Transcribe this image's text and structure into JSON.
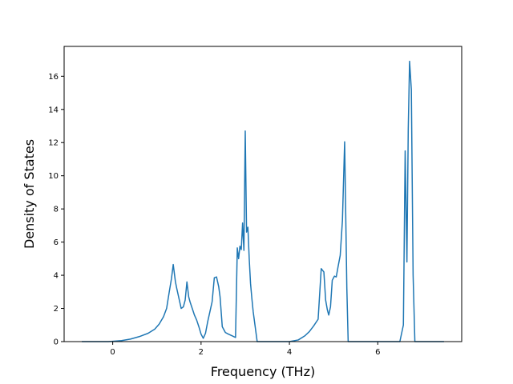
{
  "chart_data": {
    "type": "line",
    "title": "",
    "xlabel": "Frequency (THz)",
    "ylabel": "Density of States",
    "xlim": [
      -1.1,
      7.9
    ],
    "ylim": [
      0,
      17.8
    ],
    "xticks": [
      0,
      2,
      4,
      6
    ],
    "yticks": [
      0,
      2,
      4,
      6,
      8,
      10,
      12,
      14,
      16
    ],
    "grid": false,
    "legend": "none",
    "colors": {
      "line": "#1f77b4",
      "axes": "#000000",
      "background": "#ffffff"
    },
    "series": [
      {
        "x": [
          -0.7,
          -0.4,
          -0.1,
          0.0,
          0.2,
          0.4,
          0.6,
          0.8,
          0.95,
          1.05,
          1.15,
          1.22,
          1.28,
          1.33,
          1.37,
          1.42,
          1.45,
          1.5,
          1.55,
          1.6,
          1.64,
          1.68,
          1.72,
          1.75,
          1.8,
          1.85,
          1.9,
          1.95,
          2.0,
          2.05,
          2.1,
          2.15,
          2.2,
          2.25,
          2.3,
          2.35,
          2.4,
          2.43,
          2.48,
          2.55,
          2.62,
          2.7,
          2.78,
          2.82,
          2.85,
          2.88,
          2.91,
          2.94,
          2.97,
          3.0,
          3.03,
          3.06,
          3.09,
          3.12,
          3.15,
          3.18,
          3.22,
          3.27,
          3.32,
          3.36,
          3.45,
          3.6,
          3.8,
          4.0,
          4.2,
          4.35,
          4.45,
          4.55,
          4.65,
          4.72,
          4.78,
          4.82,
          4.86,
          4.89,
          4.93,
          4.97,
          5.02,
          5.06,
          5.1,
          5.15,
          5.2,
          5.25,
          5.3,
          5.33,
          5.37,
          5.4,
          5.45,
          5.5,
          5.8,
          6.2,
          6.5,
          6.58,
          6.62,
          6.66,
          6.69,
          6.72,
          6.76,
          6.8,
          6.84,
          6.9,
          7.2,
          7.5
        ],
        "y": [
          0,
          0,
          0,
          0.02,
          0.06,
          0.15,
          0.3,
          0.5,
          0.75,
          1.05,
          1.5,
          2.0,
          3.0,
          3.8,
          4.65,
          3.6,
          3.2,
          2.6,
          2.0,
          2.1,
          2.5,
          3.6,
          2.7,
          2.4,
          2.0,
          1.6,
          1.3,
          0.9,
          0.45,
          0.2,
          0.5,
          1.2,
          1.8,
          2.4,
          3.85,
          3.9,
          3.3,
          2.7,
          0.9,
          0.55,
          0.45,
          0.35,
          0.25,
          5.65,
          5.0,
          5.75,
          5.55,
          7.15,
          5.5,
          12.7,
          6.6,
          6.9,
          5.0,
          3.5,
          2.6,
          1.8,
          1.0,
          0,
          0,
          0,
          0,
          0,
          0,
          0,
          0.1,
          0.35,
          0.6,
          0.95,
          1.35,
          4.4,
          4.2,
          2.5,
          1.9,
          1.6,
          2.1,
          3.7,
          3.95,
          3.9,
          4.5,
          5.2,
          7.3,
          12.05,
          3.2,
          0,
          0,
          0,
          0,
          0,
          0,
          0,
          0,
          1.0,
          11.5,
          4.8,
          12.8,
          16.9,
          15.2,
          4.0,
          0,
          0,
          0,
          0
        ]
      }
    ]
  }
}
